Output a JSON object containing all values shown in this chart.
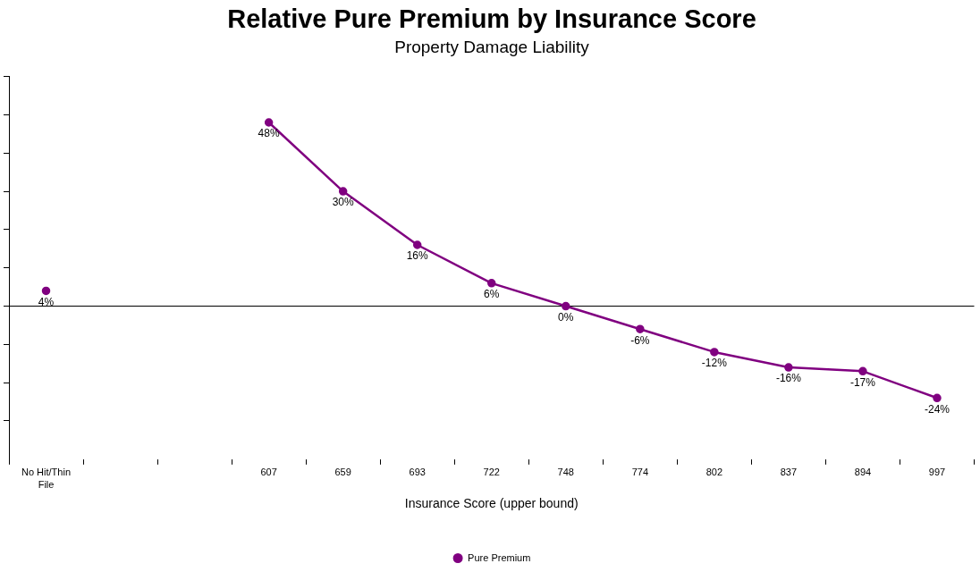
{
  "chart_data": {
    "type": "line",
    "title": "Relative Pure Premium by Insurance Score",
    "subtitle": "Property Damage Liability",
    "xlabel": "Insurance Score (upper bound)",
    "categories": [
      "No Hit/Thin File",
      null,
      null,
      "607",
      "659",
      "693",
      "722",
      "748",
      "774",
      "802",
      "837",
      "894",
      "997"
    ],
    "series": [
      {
        "name": "Pure Premium",
        "color": "#800080",
        "values": [
          4,
          null,
          null,
          48,
          30,
          16,
          6,
          0,
          -6,
          -12,
          -16,
          -17,
          -24
        ],
        "value_labels": [
          "4%",
          null,
          null,
          "48%",
          "30%",
          "16%",
          "6%",
          "0%",
          "-6%",
          "-12%",
          "-16%",
          "-17%",
          "-24%"
        ]
      }
    ],
    "tick_labels": "x",
    "grid": false,
    "legend": "bottom",
    "marker": "circle",
    "line_style": "solid"
  }
}
